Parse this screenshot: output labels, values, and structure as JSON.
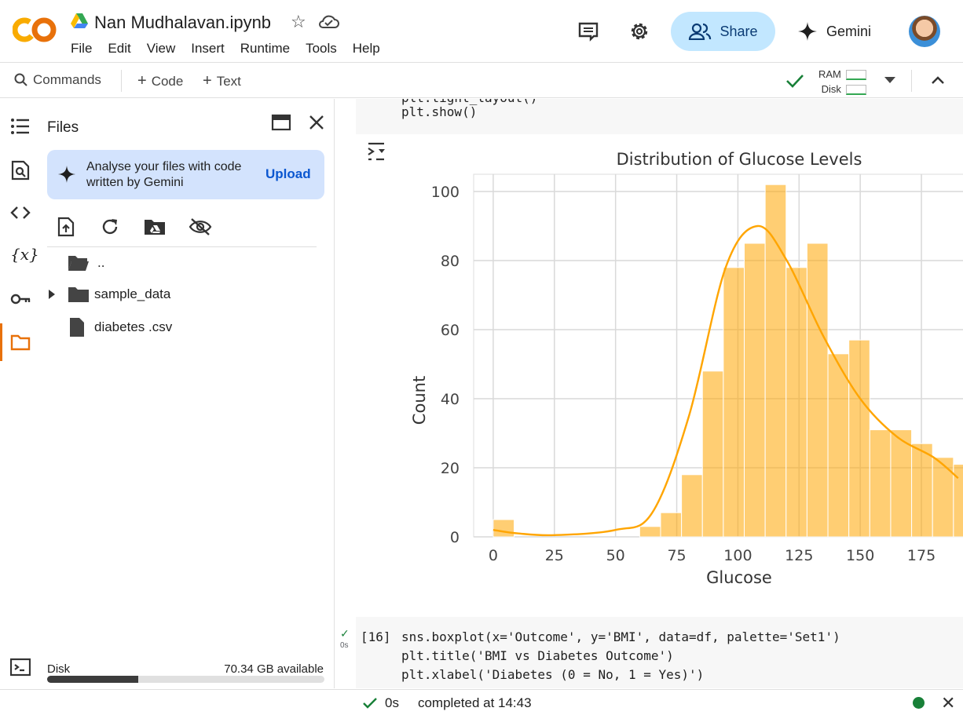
{
  "header": {
    "notebook_title": "Nan Mudhalavan.ipynb",
    "menu": [
      "File",
      "Edit",
      "View",
      "Insert",
      "Runtime",
      "Tools",
      "Help"
    ],
    "share_label": "Share",
    "gemini_label": "Gemini",
    "icons": [
      "colab-logo",
      "drive-icon",
      "star-icon",
      "cloud-icon",
      "comment-icon",
      "gear-icon",
      "share-people-icon",
      "gemini-sparkle-icon",
      "avatar"
    ]
  },
  "toolbar": {
    "commands_label": "Commands",
    "code_label": "Code",
    "text_label": "Text",
    "ram_label": "RAM",
    "disk_label": "Disk"
  },
  "files_panel": {
    "title": "Files",
    "gemini_card_text": "Analyse your files with code written by Gemini",
    "upload_label": "Upload",
    "tree": [
      {
        "name": "..",
        "type": "folder-open"
      },
      {
        "name": "sample_data",
        "type": "folder"
      },
      {
        "name": "diabetes .csv",
        "type": "file"
      }
    ],
    "disk_label": "Disk",
    "disk_available": "70.34 GB available",
    "disk_used_fraction": 0.33
  },
  "cells": {
    "top_cell_lines": [
      "plt.tight_layout()",
      "plt.show()"
    ],
    "cell16_number": "[16]",
    "cell16_lines": [
      "sns.boxplot(x='Outcome', y='BMI', data=df, palette='Set1')",
      "plt.title('BMI vs Diabetes Outcome')",
      "plt.xlabel('Diabetes (0 = No, 1 = Yes)')"
    ],
    "cell16_time": "0s"
  },
  "status": {
    "time": "0s",
    "completed": "completed at 14:43"
  },
  "chart_data": {
    "type": "bar",
    "title": "Distribution of Glucose Levels",
    "xlabel": "Glucose",
    "ylabel": "Count",
    "xlim": [
      -8,
      192
    ],
    "ylim": [
      0,
      105
    ],
    "xticks": [
      0,
      25,
      50,
      75,
      100,
      125,
      150,
      175
    ],
    "yticks": [
      0,
      20,
      40,
      60,
      80,
      100
    ],
    "bin_width": 8.55,
    "bin_starts": [
      0,
      8.55,
      17.1,
      25.65,
      34.2,
      42.75,
      51.3,
      59.85,
      68.4,
      76.95,
      85.5,
      94.05,
      102.6,
      111.15,
      119.7,
      128.25,
      136.8,
      145.35,
      153.9,
      162.45,
      171.0,
      179.55,
      188.1
    ],
    "values": [
      5,
      0,
      0,
      0,
      0,
      0,
      0,
      3,
      7,
      18,
      48,
      78,
      85,
      102,
      78,
      85,
      53,
      57,
      31,
      31,
      27,
      23,
      21
    ],
    "kde": [
      [
        0,
        2
      ],
      [
        10,
        1
      ],
      [
        25,
        0.5
      ],
      [
        50,
        2
      ],
      [
        65,
        7
      ],
      [
        80,
        35
      ],
      [
        95,
        78
      ],
      [
        108,
        90
      ],
      [
        120,
        80
      ],
      [
        135,
        58
      ],
      [
        150,
        40
      ],
      [
        165,
        29
      ],
      [
        180,
        23
      ],
      [
        190,
        17
      ]
    ],
    "color": "#ffa500",
    "grid": true
  }
}
